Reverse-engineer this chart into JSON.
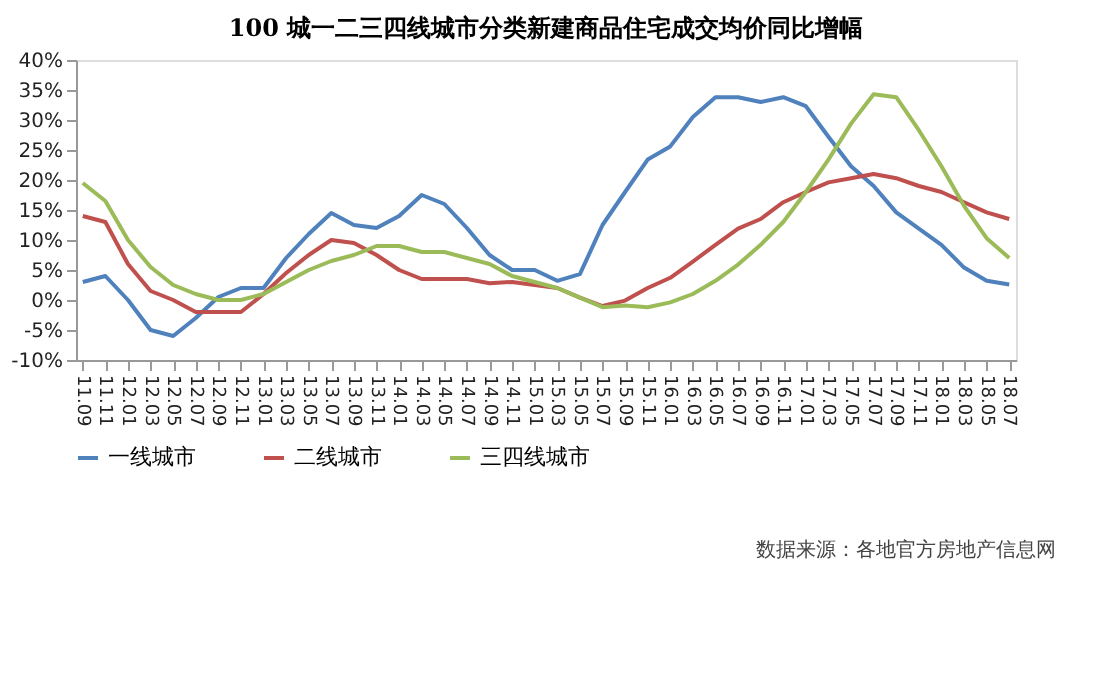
{
  "chart_data": {
    "type": "line",
    "title": "100 城一二三四线城市分类新建商品住宅成交均价同比增幅",
    "categories": [
      "11.09",
      "11.11",
      "12.01",
      "12.03",
      "12.05",
      "12.07",
      "12.09",
      "12.11",
      "13.01",
      "13.03",
      "13.05",
      "13.07",
      "13.09",
      "13.11",
      "14.01",
      "14.03",
      "14.05",
      "14.07",
      "14.09",
      "14.11",
      "15.01",
      "15.03",
      "15.05",
      "15.07",
      "15.09",
      "15.11",
      "16.01",
      "16.03",
      "16.05",
      "16.07",
      "16.09",
      "16.11",
      "17.01",
      "17.03",
      "17.05",
      "17.07",
      "17.09",
      "17.11",
      "18.01",
      "18.03",
      "18.05",
      "18.07"
    ],
    "series": [
      {
        "name": "一线城市",
        "color": "#4f81bd",
        "values": [
          3,
          4,
          0,
          -5,
          -6,
          -3,
          0.5,
          2,
          2,
          7,
          11,
          14.5,
          12.5,
          12,
          14,
          17.5,
          16,
          12,
          7.5,
          5,
          5,
          3.2,
          4.3,
          12.5,
          18,
          23.4,
          25.6,
          30.5,
          33.8,
          33.8,
          33,
          33.8,
          32.3,
          27.2,
          22.3,
          19,
          14.6,
          11.9,
          9.2,
          5.4,
          3.2,
          2.6
        ]
      },
      {
        "name": "二线城市",
        "color": "#c0504d",
        "values": [
          14,
          13,
          6,
          1.5,
          0,
          -2,
          -2,
          -2,
          1,
          4.5,
          7.5,
          10,
          9.5,
          7.5,
          5,
          3.5,
          3.5,
          3.5,
          2.8,
          3,
          2.5,
          2,
          0.4,
          -1,
          -0.1,
          2,
          3.7,
          6.4,
          9.2,
          11.9,
          13.5,
          16.3,
          18,
          19.6,
          20.3,
          21,
          20.3,
          19,
          18,
          16.3,
          14.6,
          13.5
        ]
      },
      {
        "name": "三四线城市",
        "color": "#9bbb59",
        "values": [
          19.5,
          16.5,
          10,
          5.5,
          2.5,
          1,
          0,
          0,
          1,
          3,
          5,
          6.5,
          7.5,
          9,
          9,
          8,
          8,
          7,
          6,
          4,
          3,
          2,
          0.4,
          -1.2,
          -0.9,
          -1.2,
          -0.4,
          1,
          3.2,
          5.9,
          9.2,
          13,
          18,
          23.4,
          29.4,
          34.3,
          33.8,
          28.3,
          22.3,
          15.7,
          10.3,
          7
        ]
      }
    ],
    "ylim": [
      -10,
      40
    ],
    "yticks": [
      {
        "value": -10,
        "label": "-10%"
      },
      {
        "value": -5,
        "label": "-5%"
      },
      {
        "value": 0,
        "label": "0%"
      },
      {
        "value": 5,
        "label": "5%"
      },
      {
        "value": 10,
        "label": "10%"
      },
      {
        "value": 15,
        "label": "15%"
      },
      {
        "value": 20,
        "label": "20%"
      },
      {
        "value": 25,
        "label": "25%"
      },
      {
        "value": 30,
        "label": "30%"
      },
      {
        "value": 35,
        "label": "35%"
      },
      {
        "value": 40,
        "label": "40%"
      }
    ],
    "grid": false,
    "legend": "bottom",
    "marker": "none",
    "line_style": "solid",
    "annotations": [
      "数据来源：各地官方房地产信息网"
    ]
  }
}
